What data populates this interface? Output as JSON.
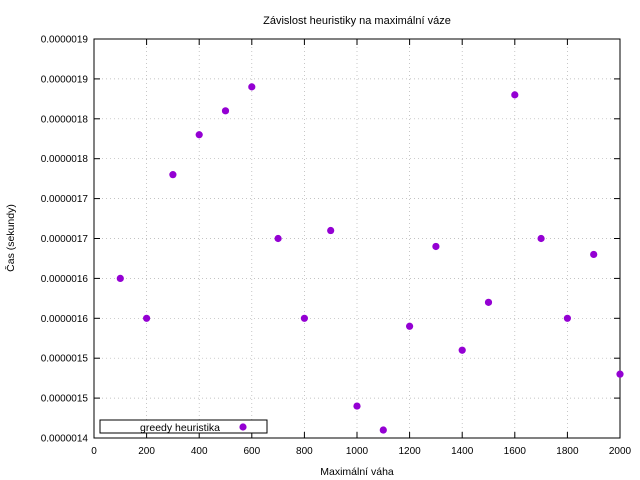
{
  "chart_data": {
    "type": "scatter",
    "title": "Závislost heuristiky na maximální váze",
    "xlabel": "Maximální váha",
    "ylabel": "Čas (sekundy)",
    "xlim": [
      0,
      2000
    ],
    "ylim": [
      1.4e-06,
      1.9e-06
    ],
    "x_ticks": [
      0,
      200,
      400,
      600,
      800,
      1000,
      1200,
      1400,
      1600,
      1800,
      2000
    ],
    "x_tick_labels": [
      "0",
      "200",
      "400",
      "600",
      "800",
      "1000",
      "1200",
      "1400",
      "1600",
      "1800",
      "2000"
    ],
    "y_ticks": [
      1.4e-06,
      1.45e-06,
      1.5e-06,
      1.55e-06,
      1.6e-06,
      1.65e-06,
      1.7e-06,
      1.75e-06,
      1.8e-06,
      1.85e-06,
      1.9e-06
    ],
    "y_tick_labels": [
      "0.0000014",
      "0.0000015",
      "0.0000015",
      "0.0000016",
      "0.0000016",
      "0.0000017",
      "0.0000017",
      "0.0000018",
      "0.0000018",
      "0.0000019",
      "0.0000019"
    ],
    "grid": true,
    "legend_position": "bottom-left",
    "series": [
      {
        "name": "greedy heuristika",
        "color": "#9400d3",
        "marker": "circle",
        "x": [
          100,
          200,
          300,
          400,
          500,
          600,
          700,
          800,
          900,
          1000,
          1100,
          1200,
          1300,
          1400,
          1500,
          1600,
          1700,
          1800,
          1900,
          2000
        ],
        "y": [
          1.6e-06,
          1.55e-06,
          1.73e-06,
          1.78e-06,
          1.81e-06,
          1.84e-06,
          1.65e-06,
          1.55e-06,
          1.66e-06,
          1.44e-06,
          1.41e-06,
          1.54e-06,
          1.64e-06,
          1.51e-06,
          1.57e-06,
          1.83e-06,
          1.65e-06,
          1.55e-06,
          1.63e-06,
          1.48e-06
        ]
      }
    ]
  }
}
